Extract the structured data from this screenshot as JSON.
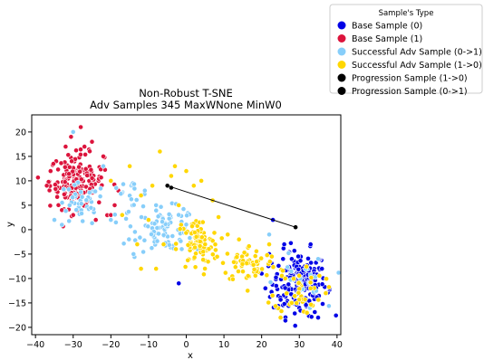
{
  "chart_data": {
    "type": "scatter",
    "title_lines": [
      "Non-Robust T-SNE",
      "Adv Samples 345 MaxWNone MinW0"
    ],
    "xlabel": "x",
    "ylabel": "y",
    "xlim": [
      -41,
      41
    ],
    "ylim": [
      -21.5,
      23.5
    ],
    "xticks": [
      -40,
      -30,
      -20,
      -10,
      0,
      10,
      20,
      30,
      40
    ],
    "yticks": [
      -20,
      -15,
      -10,
      -5,
      0,
      5,
      10,
      15,
      20
    ],
    "legend": {
      "title": "Sample's Type",
      "placement": "outside upper right",
      "entries": [
        {
          "label": "Base Sample (0)",
          "color": "#0000e6"
        },
        {
          "label": "Base Sample (1)",
          "color": "#dc143c"
        },
        {
          "label": "Successful Adv Sample (0->1)",
          "color": "#87cefa"
        },
        {
          "label": "Successful Adv Sample (1->0)",
          "color": "#ffd700"
        },
        {
          "label": "Progression Sample (1->0)",
          "color": "#000000"
        },
        {
          "label": "Progression Sample (0->1)",
          "color": "#000000"
        }
      ]
    },
    "series": [
      {
        "name": "Base Sample (0)",
        "color": "#0000e6",
        "clusters": [
          {
            "cx": 30,
            "cy": -11,
            "rx": 6.5,
            "ry": 6,
            "n": 200
          }
        ],
        "points": [
          [
            28,
            -6
          ],
          [
            33,
            -3
          ],
          [
            26,
            -3
          ],
          [
            22,
            -5
          ],
          [
            21,
            -12
          ],
          [
            24,
            -16
          ],
          [
            35,
            -18
          ],
          [
            36,
            -8
          ],
          [
            38,
            -12
          ],
          [
            20,
            -9
          ],
          [
            -2,
            -11
          ],
          [
            23,
            2
          ]
        ]
      },
      {
        "name": "Base Sample (1)",
        "color": "#dc143c",
        "clusters": [
          {
            "cx": -29,
            "cy": 10,
            "rx": 6.5,
            "ry": 5,
            "n": 170
          }
        ],
        "points": [
          [
            -37,
            9
          ],
          [
            -36,
            12
          ],
          [
            -28,
            21
          ],
          [
            -22,
            15
          ],
          [
            -18,
            8
          ],
          [
            -20,
            3
          ],
          [
            -24,
            2
          ],
          [
            -30,
            3
          ],
          [
            -33,
            4
          ],
          [
            -27,
            17
          ],
          [
            -32,
            17
          ],
          [
            -25,
            18
          ],
          [
            -19,
            5
          ]
        ]
      },
      {
        "name": "Successful Adv Sample (0->1)",
        "color": "#87cefa",
        "clusters": [
          {
            "cx": -28,
            "cy": 5,
            "rx": 6,
            "ry": 4,
            "n": 40
          },
          {
            "cx": -5,
            "cy": 0,
            "rx": 7,
            "ry": 4,
            "n": 90
          },
          {
            "cx": -15,
            "cy": 6,
            "rx": 5,
            "ry": 4,
            "n": 25
          },
          {
            "cx": 30,
            "cy": -11,
            "rx": 6,
            "ry": 5,
            "n": 20
          }
        ],
        "points": [
          [
            -30,
            20
          ],
          [
            -22,
            13
          ],
          [
            -11,
            8
          ],
          [
            -8,
            5
          ],
          [
            -14,
            -5
          ],
          [
            22,
            -1
          ],
          [
            18,
            -8
          ],
          [
            35,
            -6
          ],
          [
            -35,
            2
          ],
          [
            -33,
            1
          ],
          [
            -20,
            2
          ],
          [
            3,
            -4
          ]
        ]
      },
      {
        "name": "Successful Adv Sample (1->0)",
        "color": "#ffd700",
        "clusters": [
          {
            "cx": 3,
            "cy": -3,
            "rx": 5,
            "ry": 5,
            "n": 80
          },
          {
            "cx": 17,
            "cy": -7,
            "rx": 7,
            "ry": 3.5,
            "n": 60
          },
          {
            "cx": 30,
            "cy": -12,
            "rx": 6,
            "ry": 4.5,
            "n": 40
          }
        ],
        "points": [
          [
            -15,
            13
          ],
          [
            -7,
            16
          ],
          [
            -3,
            13
          ],
          [
            -4,
            11
          ],
          [
            -9,
            9
          ],
          [
            -12,
            7
          ],
          [
            0,
            12
          ],
          [
            -17,
            3
          ],
          [
            -12,
            -8
          ],
          [
            -8,
            -8
          ],
          [
            5,
            -3
          ],
          [
            11,
            -1
          ],
          [
            14,
            -2
          ],
          [
            22,
            -3
          ],
          [
            28,
            -15
          ],
          [
            32,
            -17
          ],
          [
            25,
            -18
          ],
          [
            -13,
            -3
          ],
          [
            37,
            -13
          ],
          [
            33,
            -12
          ],
          [
            -20,
            10
          ],
          [
            -6,
            -3
          ],
          [
            -10,
            2
          ],
          [
            7,
            6
          ],
          [
            2,
            9
          ],
          [
            4,
            10
          ],
          [
            -2,
            5
          ]
        ]
      },
      {
        "name": "Progression Sample (1->0)",
        "color": "#000000",
        "points": [
          [
            -5,
            9
          ],
          [
            -4,
            8.6
          ]
        ],
        "line_to": [
          29,
          0.5
        ]
      },
      {
        "name": "Progression Sample (0->1)",
        "color": "#000000",
        "points": [
          [
            29,
            0.5
          ]
        ]
      }
    ]
  }
}
